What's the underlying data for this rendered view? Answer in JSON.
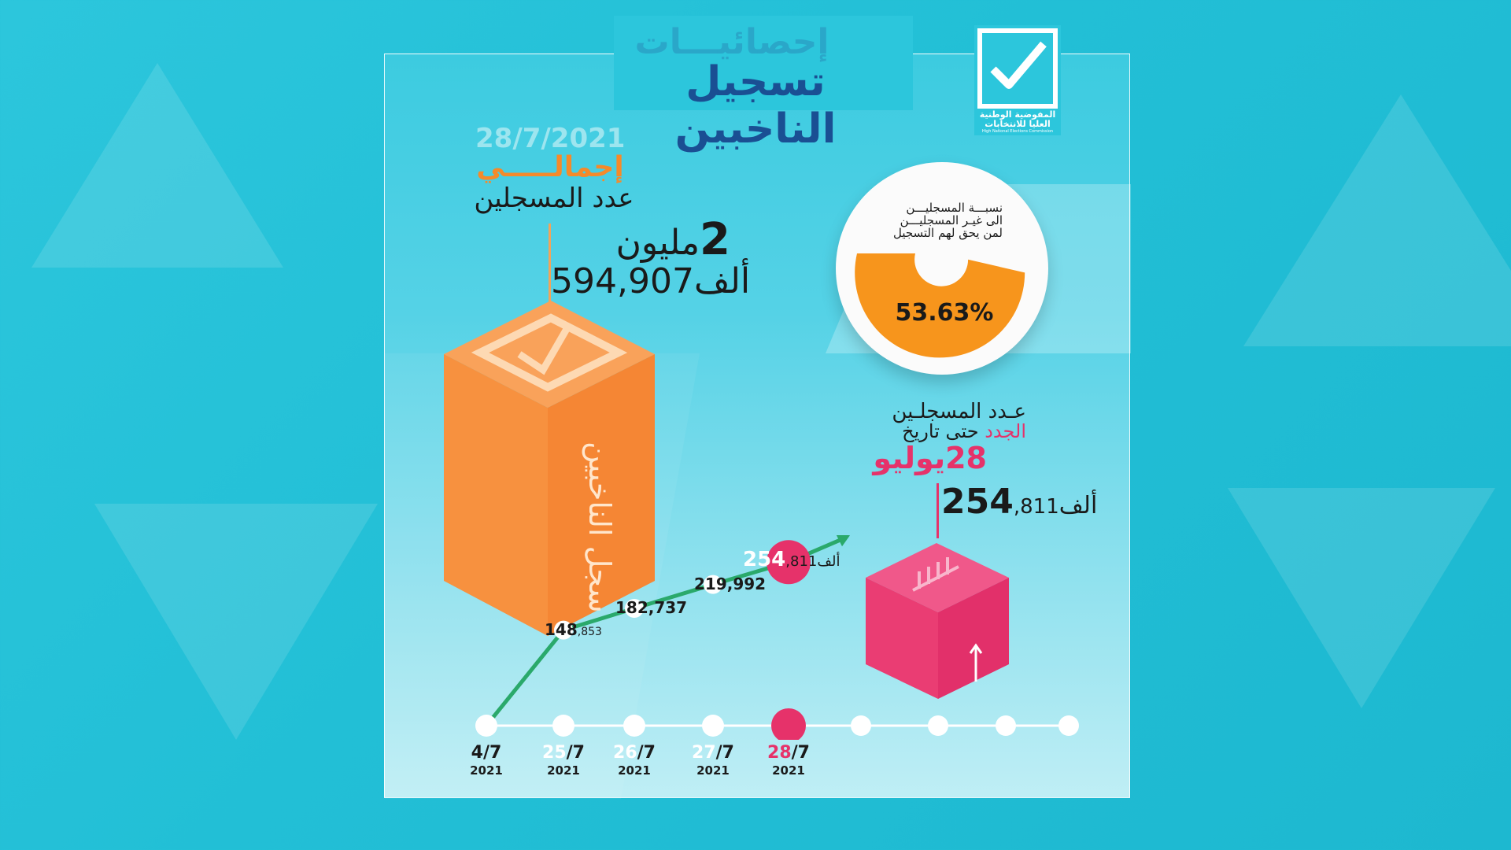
{
  "header": {
    "title_line1": "إحصائيـــات",
    "title_line2": "تسجيل الناخبين"
  },
  "logo": {
    "name_ar": "المفوضية الوطنية العليا للانتخابات",
    "name_en": "High National Elections Commission",
    "icon": "checkmark-icon"
  },
  "total": {
    "date": "28/7/2021",
    "label_total": "إجمالـــــي",
    "label_count": "عدد المسجلين",
    "millions_num": "2",
    "millions_word": "مليون",
    "thousands_num": "594,907",
    "thousands_word": "ألف",
    "box_label": "سجل الناخبين"
  },
  "pie": {
    "label_line1": "نسبـــة المسجليـــن",
    "label_line2": "الى غيـر المسجليـــن",
    "label_line3": "لمن يحق لهم التسجيل",
    "value_label": "53.63%",
    "fraction": 0.5363,
    "color": "#f7951c"
  },
  "new_registrants": {
    "line1": "عـدد المسجلـين",
    "line2_pink": "الجدد",
    "line2_rest": "حتى تاريخ",
    "line3_num": "28",
    "line3_word": "يوليو",
    "value_bold": "254",
    "value_rest": ",811",
    "value_word": "ألف"
  },
  "chart_data": {
    "type": "line",
    "x": [
      "4/7 2021",
      "25/7 2021",
      "26/7 2021",
      "27/7 2021",
      "28/7 2021"
    ],
    "series": [
      {
        "values": [
          0,
          148853,
          182737,
          219992,
          254811
        ]
      }
    ],
    "point_labels": [
      {
        "bold": "",
        "small": ""
      },
      {
        "bold": "148",
        "small": ",853"
      },
      {
        "bold": "182,737",
        "small": ""
      },
      {
        "bold": "219,992",
        "small": ""
      },
      {
        "bold": "254",
        "small": ",811",
        "word": "ألف"
      }
    ],
    "line_color": "#2aa96b",
    "accent": "#e6326a"
  },
  "timeline": {
    "dates": [
      {
        "day": "4",
        "month": "/7",
        "year": "2021",
        "style": "plain"
      },
      {
        "day": "25",
        "month": "/7",
        "year": "2021",
        "style": "white"
      },
      {
        "day": "26",
        "month": "/7",
        "year": "2021",
        "style": "white"
      },
      {
        "day": "27",
        "month": "/7",
        "year": "2021",
        "style": "white"
      },
      {
        "day": "28",
        "month": "/7",
        "year": "2021",
        "style": "pink"
      }
    ]
  },
  "colors": {
    "background": "#2cc6dc",
    "orange_box": "#f7913f",
    "pink_box": "#e6326a",
    "title_dark": "#1a4f93",
    "title_light": "#2aa7c9"
  }
}
